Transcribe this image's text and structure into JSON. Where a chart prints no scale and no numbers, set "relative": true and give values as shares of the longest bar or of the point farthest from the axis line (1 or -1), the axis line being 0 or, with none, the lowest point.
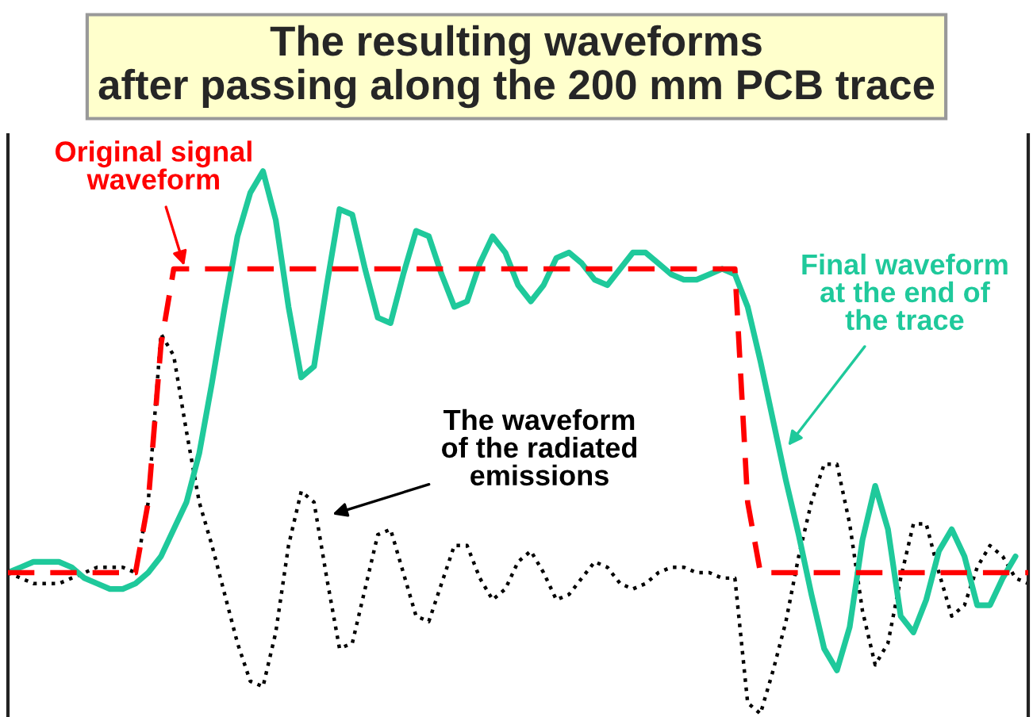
{
  "chart_data": {
    "type": "line",
    "title": "The resulting waveforms\nafter passing along the 200 mm PCB trace",
    "relative": true,
    "categories": [
      null,
      null,
      null,
      null,
      null,
      null,
      null,
      null,
      null,
      null,
      null,
      null,
      null,
      null,
      null,
      null,
      null,
      null,
      null,
      null,
      null,
      null,
      null,
      null,
      null,
      null,
      null,
      null,
      null,
      null,
      null,
      null,
      null,
      null,
      null,
      null,
      null,
      null,
      null,
      null,
      null,
      null,
      null,
      null,
      null,
      null,
      null,
      null,
      null,
      null,
      null,
      null,
      null,
      null,
      null,
      null,
      null,
      null,
      null,
      null,
      null,
      null,
      null,
      null,
      null,
      null,
      null,
      null,
      null,
      null,
      null,
      null,
      null,
      null,
      null,
      null,
      null,
      null,
      null,
      null,
      null
    ],
    "series": [
      {
        "color": "#ff0000",
        "line_style": "dashed",
        "values": [
          0.26,
          0.26,
          0.26,
          0.26,
          0.26,
          0.26,
          0.26,
          0.26,
          0.26,
          0.26,
          0.26,
          0.39,
          0.68,
          0.82,
          0.82,
          0.82,
          0.82,
          0.82,
          0.82,
          0.82,
          0.82,
          0.82,
          0.82,
          0.82,
          0.82,
          0.82,
          0.82,
          0.82,
          0.82,
          0.82,
          0.82,
          0.82,
          0.82,
          0.82,
          0.82,
          0.82,
          0.82,
          0.82,
          0.82,
          0.82,
          0.82,
          0.82,
          0.82,
          0.82,
          0.82,
          0.82,
          0.82,
          0.82,
          0.82,
          0.82,
          0.82,
          0.82,
          0.82,
          0.82,
          0.82,
          0.82,
          0.82,
          0.82,
          0.39,
          0.26,
          0.26,
          0.26,
          0.26,
          0.26,
          0.26,
          0.26,
          0.26,
          0.26,
          0.26,
          0.26,
          0.26,
          0.26,
          0.26,
          0.26,
          0.26,
          0.26,
          0.26,
          0.26,
          0.26,
          0.26,
          0.26
        ]
      },
      {
        "color": "#1fc99b",
        "line_style": "solid",
        "values": [
          0.26,
          0.27,
          0.28,
          0.28,
          0.28,
          0.27,
          0.25,
          0.24,
          0.23,
          0.23,
          0.24,
          0.26,
          0.29,
          0.34,
          0.39,
          0.48,
          0.61,
          0.75,
          0.88,
          0.96,
          1.0,
          0.91,
          0.75,
          0.62,
          0.64,
          0.79,
          0.93,
          0.92,
          0.82,
          0.73,
          0.72,
          0.81,
          0.89,
          0.88,
          0.81,
          0.75,
          0.76,
          0.83,
          0.88,
          0.85,
          0.79,
          0.76,
          0.79,
          0.84,
          0.85,
          0.83,
          0.8,
          0.79,
          0.82,
          0.85,
          0.85,
          0.83,
          0.81,
          0.8,
          0.8,
          0.81,
          0.82,
          0.81,
          0.75,
          0.65,
          0.54,
          0.43,
          0.33,
          0.22,
          0.12,
          0.08,
          0.16,
          0.32,
          0.42,
          0.34,
          0.18,
          0.15,
          0.21,
          0.3,
          0.34,
          0.29,
          0.2,
          0.2,
          0.25,
          0.29,
          null
        ]
      },
      {
        "color": "#000000",
        "line_style": "dotted",
        "values": [
          0.26,
          0.25,
          0.24,
          0.24,
          0.24,
          0.25,
          0.26,
          0.27,
          0.27,
          0.27,
          0.26,
          0.39,
          0.7,
          0.66,
          0.52,
          0.39,
          0.31,
          0.22,
          0.13,
          0.06,
          0.05,
          0.15,
          0.31,
          0.41,
          0.39,
          0.25,
          0.12,
          0.13,
          0.23,
          0.33,
          0.34,
          0.26,
          0.18,
          0.17,
          0.24,
          0.31,
          0.31,
          0.25,
          0.21,
          0.23,
          0.28,
          0.3,
          0.26,
          0.21,
          0.22,
          0.25,
          0.28,
          0.27,
          0.24,
          0.23,
          0.24,
          0.26,
          0.27,
          0.27,
          0.26,
          0.26,
          0.25,
          0.25,
          0.02,
          0.0,
          0.08,
          0.17,
          0.29,
          0.39,
          0.46,
          0.46,
          0.35,
          0.19,
          0.09,
          0.13,
          0.25,
          0.35,
          0.35,
          0.26,
          0.18,
          0.2,
          0.27,
          0.31,
          0.29,
          0.25,
          0.24
        ]
      }
    ],
    "annotations": [
      "Original signal\nwaveform",
      "Final waveform\nat the end of\nthe trace",
      "The waveform\nof the radiated\nemissions"
    ]
  }
}
